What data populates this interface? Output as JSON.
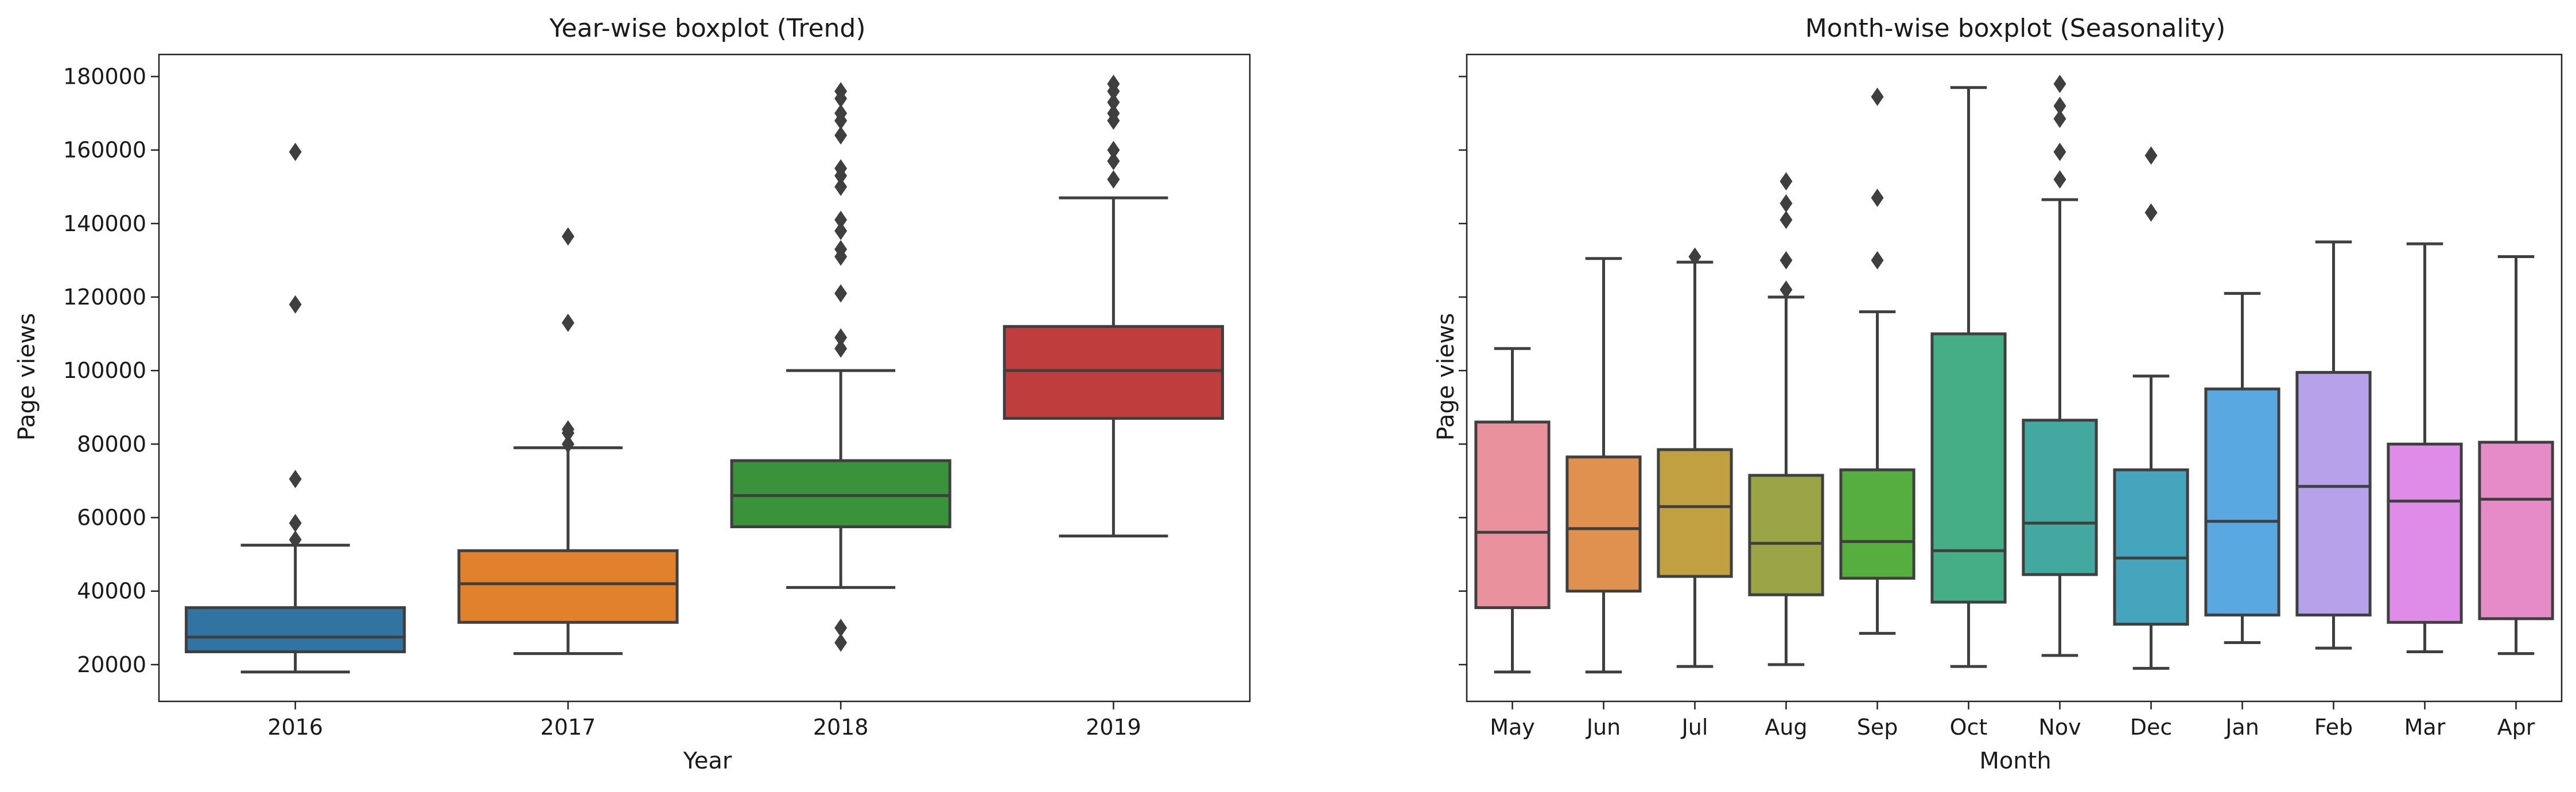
{
  "chart_data": [
    {
      "type": "box",
      "title": "Year-wise boxplot (Trend)",
      "xlabel": "Year",
      "ylabel": "Page views",
      "ylim": [
        10000,
        186000
      ],
      "yticks": [
        20000,
        40000,
        60000,
        80000,
        100000,
        120000,
        140000,
        160000,
        180000
      ],
      "ytick_labels": [
        "20000",
        "40000",
        "60000",
        "80000",
        "100000",
        "120000",
        "140000",
        "160000",
        "180000"
      ],
      "categories": [
        "2016",
        "2017",
        "2018",
        "2019"
      ],
      "boxes": [
        {
          "label": "2016",
          "color": "#3274a1",
          "whisker_low": 18000,
          "q1": 23500,
          "median": 27500,
          "q3": 35500,
          "whisker_high": 52500,
          "outliers": [
            54000,
            58500,
            70500,
            118000,
            159500
          ]
        },
        {
          "label": "2017",
          "color": "#e1812c",
          "whisker_low": 23000,
          "q1": 31500,
          "median": 42000,
          "q3": 51000,
          "whisker_high": 79000,
          "outliers": [
            80000,
            83000,
            84000,
            113000,
            136500
          ]
        },
        {
          "label": "2018",
          "color": "#3a923a",
          "whisker_low": 41000,
          "q1": 57500,
          "median": 66000,
          "q3": 75500,
          "whisker_high": 100000,
          "outliers": [
            26000,
            30000,
            106000,
            109000,
            121000,
            131000,
            133000,
            138000,
            141000,
            150000,
            153000,
            155000,
            164000,
            168000,
            170000,
            174000,
            176000
          ]
        },
        {
          "label": "2019",
          "color": "#c03d3e",
          "whisker_low": 55000,
          "q1": 87000,
          "median": 100000,
          "q3": 112000,
          "whisker_high": 147000,
          "outliers": [
            152000,
            157000,
            160000,
            168000,
            170000,
            173000,
            176000,
            178000
          ]
        }
      ]
    },
    {
      "type": "box",
      "title": "Month-wise boxplot (Seasonality)",
      "xlabel": "Month",
      "ylabel": "Page views",
      "ylim": [
        10000,
        186000
      ],
      "yticks": [
        20000,
        40000,
        60000,
        80000,
        100000,
        120000,
        140000,
        160000,
        180000
      ],
      "categories": [
        "May",
        "Jun",
        "Jul",
        "Aug",
        "Sep",
        "Oct",
        "Nov",
        "Dec",
        "Jan",
        "Feb",
        "Mar",
        "Apr"
      ],
      "boxes": [
        {
          "label": "May",
          "color": "#e9929e",
          "whisker_low": 18000,
          "q1": 35500,
          "median": 56000,
          "q3": 86000,
          "whisker_high": 106000,
          "outliers": []
        },
        {
          "label": "Jun",
          "color": "#e0914f",
          "whisker_low": 18000,
          "q1": 40000,
          "median": 57000,
          "q3": 76500,
          "whisker_high": 130500,
          "outliers": []
        },
        {
          "label": "Jul",
          "color": "#c0a040",
          "whisker_low": 19500,
          "q1": 44000,
          "median": 63000,
          "q3": 78500,
          "whisker_high": 129500,
          "outliers": [
            131000
          ]
        },
        {
          "label": "Aug",
          "color": "#9aa345",
          "whisker_low": 20000,
          "q1": 39000,
          "median": 53000,
          "q3": 71500,
          "whisker_high": 120000,
          "outliers": [
            122000,
            130000,
            141000,
            145500,
            151500
          ]
        },
        {
          "label": "Sep",
          "color": "#55ae3e",
          "whisker_low": 28500,
          "q1": 43500,
          "median": 53500,
          "q3": 73000,
          "whisker_high": 116000,
          "outliers": [
            130000,
            147000,
            174500
          ]
        },
        {
          "label": "Oct",
          "color": "#45ae86",
          "whisker_low": 19500,
          "q1": 37000,
          "median": 51000,
          "q3": 110000,
          "whisker_high": 177000,
          "outliers": []
        },
        {
          "label": "Nov",
          "color": "#43a8a0",
          "whisker_low": 22500,
          "q1": 44500,
          "median": 58500,
          "q3": 86500,
          "whisker_high": 146500,
          "outliers": [
            152000,
            159500,
            168500,
            172000,
            178000
          ]
        },
        {
          "label": "Dec",
          "color": "#45a5bc",
          "whisker_low": 19000,
          "q1": 31000,
          "median": 49000,
          "q3": 73000,
          "whisker_high": 98500,
          "outliers": [
            143000,
            158500
          ]
        },
        {
          "label": "Jan",
          "color": "#5aa8e2",
          "whisker_low": 26000,
          "q1": 33500,
          "median": 59000,
          "q3": 95000,
          "whisker_high": 121000,
          "outliers": []
        },
        {
          "label": "Feb",
          "color": "#b6a2ea",
          "whisker_low": 24500,
          "q1": 33500,
          "median": 68500,
          "q3": 99500,
          "whisker_high": 135000,
          "outliers": []
        },
        {
          "label": "Mar",
          "color": "#df8be8",
          "whisker_low": 23500,
          "q1": 31500,
          "median": 64500,
          "q3": 80000,
          "whisker_high": 134500,
          "outliers": []
        },
        {
          "label": "Apr",
          "color": "#e58bc8",
          "whisker_low": 23000,
          "q1": 32500,
          "median": 65000,
          "q3": 80500,
          "whisker_high": 131000,
          "outliers": []
        }
      ]
    }
  ]
}
